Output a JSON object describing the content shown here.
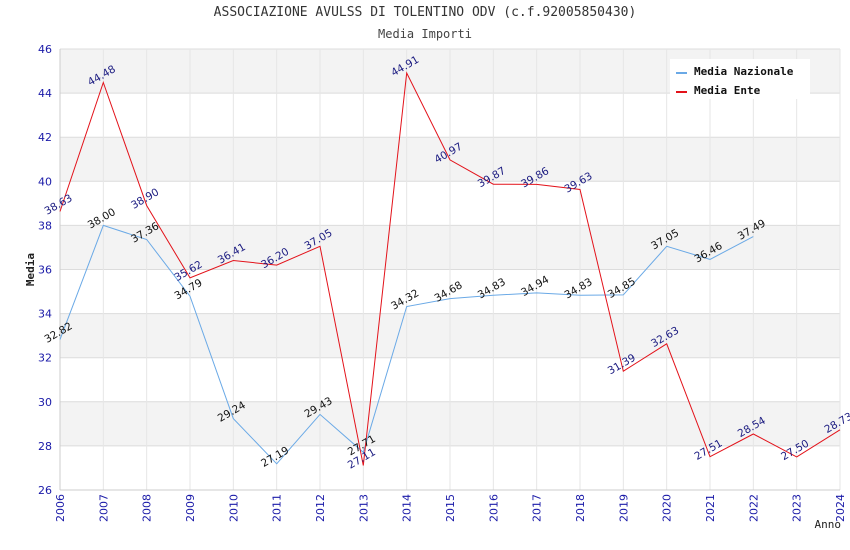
{
  "header": {
    "title": "ASSOCIAZIONE AVULSS DI TOLENTINO ODV (c.f.92005850430)",
    "subtitle": "Media Importi"
  },
  "chart_data": {
    "type": "line",
    "title": "ASSOCIAZIONE AVULSS DI TOLENTINO ODV (c.f.92005850430)",
    "subtitle": "Media Importi",
    "xlabel": "Anno",
    "ylabel": "Media",
    "ylim": [
      26,
      46
    ],
    "yticks": [
      26,
      28,
      30,
      32,
      34,
      36,
      38,
      40,
      42,
      44,
      46
    ],
    "x": [
      2006,
      2007,
      2008,
      2009,
      2010,
      2011,
      2012,
      2013,
      2014,
      2015,
      2016,
      2017,
      2018,
      2019,
      2020,
      2021,
      2022,
      2023,
      2024
    ],
    "grid": true,
    "legend_position": "top-right",
    "series": [
      {
        "name": "Media Nazionale",
        "color": "#6aa9e6",
        "x": [
          2006,
          2007,
          2008,
          2009,
          2010,
          2011,
          2012,
          2013,
          2014,
          2015,
          2016,
          2017,
          2018,
          2019,
          2020,
          2021,
          2022
        ],
        "values": [
          32.82,
          38.0,
          37.36,
          34.79,
          29.24,
          27.19,
          29.43,
          27.71,
          34.32,
          34.68,
          34.83,
          34.94,
          34.83,
          34.85,
          37.05,
          36.46,
          37.49
        ],
        "labels": [
          "32.82",
          "38.00",
          "37.36",
          "34.79",
          "29.24",
          "27.19",
          "29.43",
          "27.71",
          "34.32",
          "34.68",
          "34.83",
          "34.94",
          "34.83",
          "34.85",
          "37.05",
          "36.46",
          "37.49"
        ]
      },
      {
        "name": "Media Ente",
        "color": "#e3121a",
        "x": [
          2006,
          2007,
          2008,
          2009,
          2010,
          2011,
          2012,
          2013,
          2014,
          2015,
          2016,
          2017,
          2018,
          2019,
          2020,
          2021,
          2022,
          2023,
          2024
        ],
        "values": [
          38.63,
          44.48,
          38.9,
          35.62,
          36.41,
          36.2,
          37.05,
          27.11,
          44.91,
          40.97,
          39.87,
          39.86,
          39.63,
          31.39,
          32.63,
          27.51,
          28.54,
          27.5,
          28.73
        ],
        "labels": [
          "38.63",
          "44.48",
          "38.90",
          "35.62",
          "36.41",
          "36.20",
          "37.05",
          "27.11",
          "44.91",
          "40.97",
          "39.87",
          "39.86",
          "39.63",
          "31.39",
          "32.63",
          "27.51",
          "28.54",
          "27.50",
          "28.73"
        ]
      }
    ]
  }
}
